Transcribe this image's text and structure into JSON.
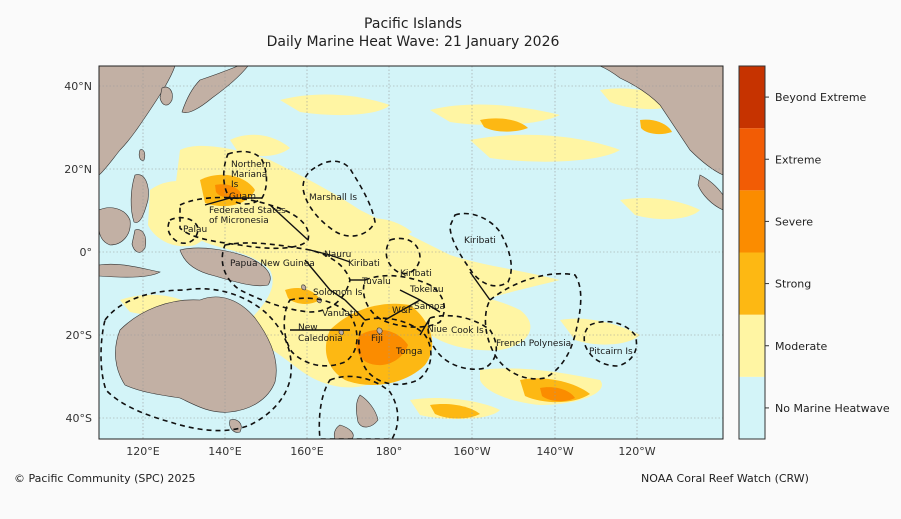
{
  "title": "Pacific Islands",
  "subtitle": "Daily Marine Heat Wave: 21 January 2026",
  "axes": {
    "lon_ticks": [
      "120°E",
      "140°E",
      "160°E",
      "180°",
      "160°W",
      "140°W",
      "120°W"
    ],
    "lat_ticks": [
      "40°N",
      "20°N",
      "0°",
      "20°S",
      "40°S"
    ]
  },
  "legend": {
    "categories": [
      {
        "label": "No Marine Heatwave",
        "color": "#d3f4f8"
      },
      {
        "label": "Moderate",
        "color": "#fff5a3"
      },
      {
        "label": "Strong",
        "color": "#fdb813"
      },
      {
        "label": "Severe",
        "color": "#fb8c00"
      },
      {
        "label": "Extreme",
        "color": "#f25c05"
      },
      {
        "label": "Beyond Extreme",
        "color": "#c63300"
      }
    ]
  },
  "regions": [
    "Northern Mariana Is",
    "Guam",
    "Marshall Is",
    "Federated States of Micronesia",
    "Palau",
    "Kiribati",
    "Papua New Guinea",
    "Nauru",
    "Kiribati",
    "Kiribati",
    "Tuvalu",
    "Tokelau",
    "Solomon Is",
    "W&F",
    "Samoa",
    "Vanuatu",
    "New Caledonia",
    "Fiji",
    "Niue",
    "Cook Is",
    "Tonga",
    "French Polynesia",
    "Pitcairn Is"
  ],
  "colors": {
    "ocean": "#d3f4f8",
    "land": "#c2b0a4",
    "eez_border": "#111111"
  },
  "footer": {
    "left": "© Pacific Community (SPC) 2025",
    "right": "NOAA Coral Reef Watch (CRW)"
  }
}
